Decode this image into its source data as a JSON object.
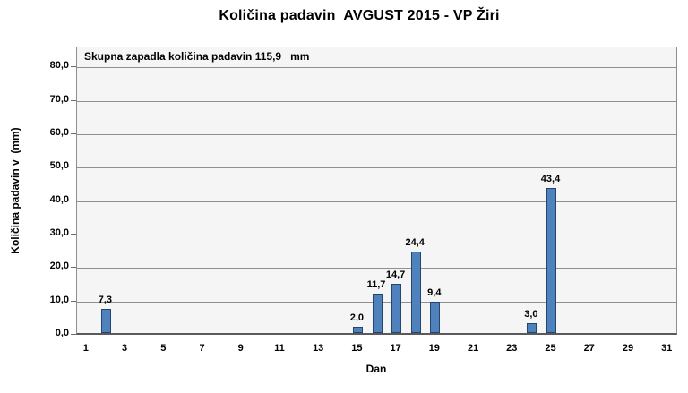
{
  "chart_data": {
    "type": "bar",
    "title": "Količina padavin  AVGUST 2015 - VP Žiri",
    "annotation": "Skupna zapadla količina padavin 115,9   mm",
    "xlabel": "Dan",
    "ylabel": "Količina padavin v  (mm)",
    "x": [
      2,
      15,
      16,
      17,
      18,
      19,
      24,
      25
    ],
    "values": [
      7.3,
      2.0,
      11.7,
      14.7,
      24.4,
      9.4,
      3.0,
      43.4
    ],
    "point_labels": [
      "7,3",
      "2,0",
      "11,7",
      "14,7",
      "24,4",
      "9,4",
      "3,0",
      "43,4"
    ],
    "xlim": [
      0.5,
      31.5
    ],
    "ylim": [
      0,
      86
    ],
    "xticks": [
      1,
      3,
      5,
      7,
      9,
      11,
      13,
      15,
      17,
      19,
      21,
      23,
      25,
      27,
      29,
      31
    ],
    "yticks": [
      {
        "value": 0,
        "label": "0,0"
      },
      {
        "value": 10,
        "label": "10,0"
      },
      {
        "value": 20,
        "label": "20,0"
      },
      {
        "value": 30,
        "label": "30,0"
      },
      {
        "value": 40,
        "label": "40,0"
      },
      {
        "value": 50,
        "label": "50,0"
      },
      {
        "value": 60,
        "label": "60,0"
      },
      {
        "value": 70,
        "label": "70,0"
      },
      {
        "value": 80,
        "label": "80,0"
      }
    ],
    "grid": "horizontal-major",
    "legend": "none",
    "colors": {
      "bar_fill": "#4f81bd",
      "bar_border": "#24466e",
      "plot_bg": "#f5f5f6",
      "plot_border": "#8e8e8e",
      "gridline": "#909090",
      "axis_line": "#5a5a5a",
      "tick_mark": "#6e6e6e",
      "text": "#000000"
    }
  }
}
